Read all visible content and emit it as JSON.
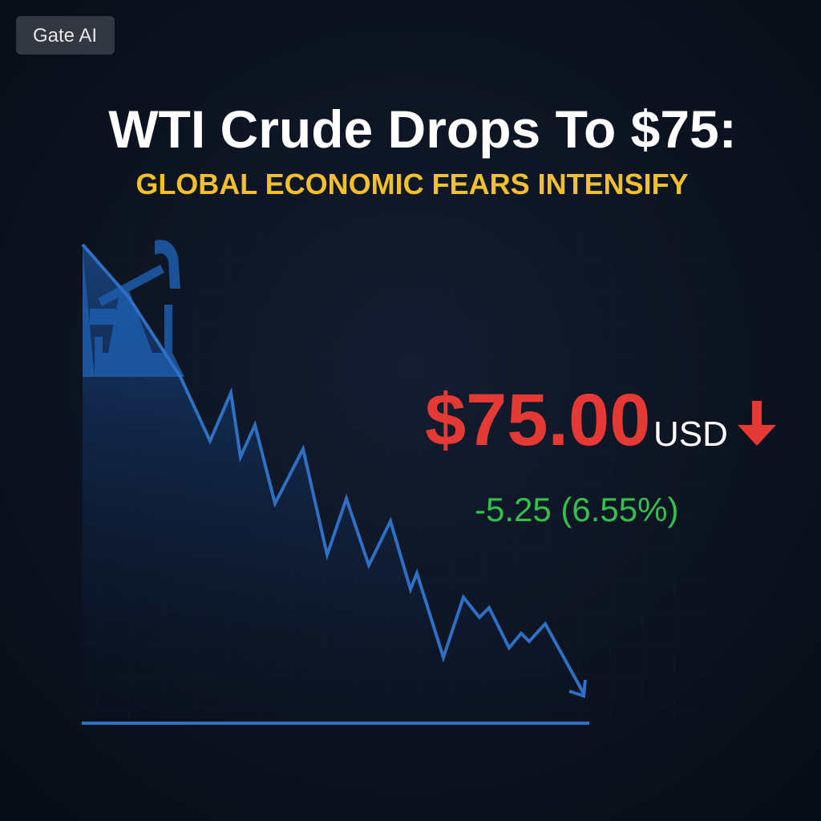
{
  "badge": "Gate AI",
  "header": {
    "title": "WTI Crude Drops To $75:",
    "subtitle": "GLOBAL ECONOMIC FEARS INTENSIFY"
  },
  "price": {
    "value": "$75.00",
    "unit": "USD",
    "change": "-5.25 (6.55%)"
  }
}
